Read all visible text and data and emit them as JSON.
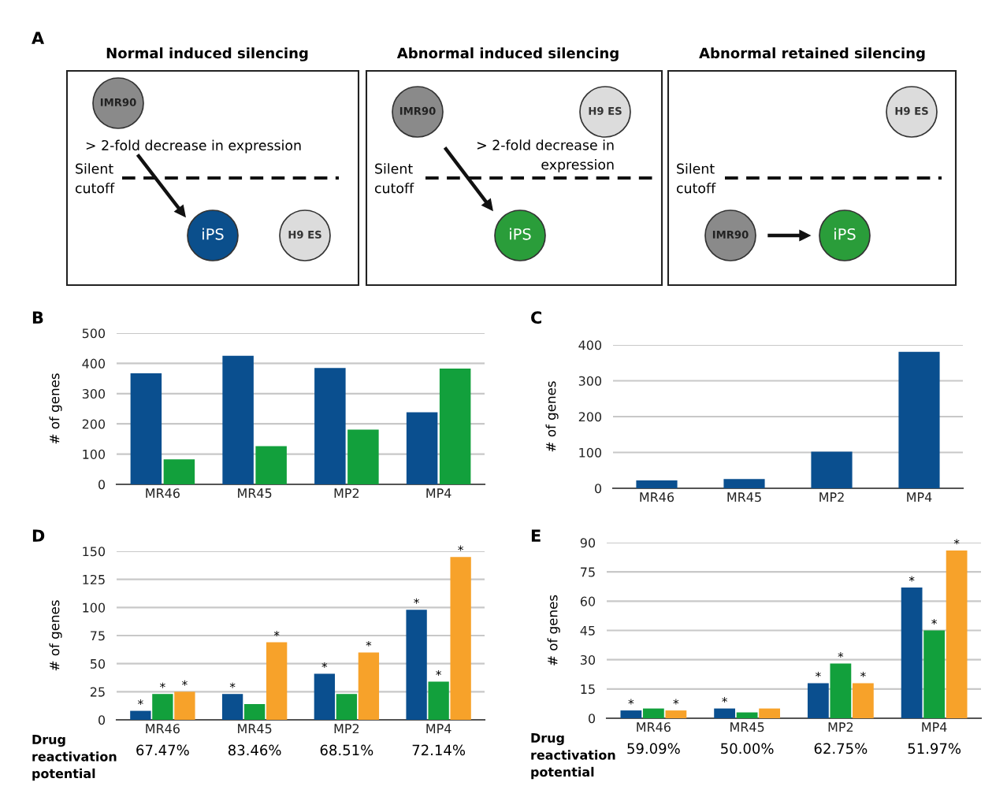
{
  "chart_data": [
    {
      "type": "other",
      "title": "A",
      "annotations": [
        "Normal induced silencing",
        "Abnormal induced silencing",
        "Abnormal retained silencing",
        "IMR90",
        "> 2-fold decrease in expression",
        "Silent\ncutoff",
        "iPS",
        "H9 ES",
        "IMR90",
        "H9 ES",
        "> 2-fold decrease in\nexpression",
        "Silent\ncutoff",
        "iPS",
        "H9 ES",
        "Silent\ncutoff",
        "IMR90",
        "iPS"
      ]
    },
    {
      "type": "bar",
      "title": "B",
      "ylabel": "# of genes",
      "categories": [
        "MR46",
        "MR45",
        "MP2",
        "MP4"
      ],
      "ylim": [
        0,
        500
      ],
      "yticks": [
        0,
        100,
        200,
        300,
        400,
        500
      ],
      "grid": "y",
      "series": [
        {
          "color": "#0a4f8f",
          "values": [
            367,
            425,
            385,
            238
          ]
        },
        {
          "color": "#12a03c",
          "values": [
            83,
            126,
            181,
            383
          ]
        }
      ]
    },
    {
      "type": "bar",
      "title": "C",
      "ylabel": "# of genes",
      "categories": [
        "MR46",
        "MR45",
        "MP2",
        "MP4"
      ],
      "ylim": [
        0,
        400
      ],
      "yticks": [
        0,
        100,
        200,
        300,
        400
      ],
      "grid": "y",
      "series": [
        {
          "color": "#0a4f8f",
          "values": [
            22,
            26,
            102,
            381
          ]
        }
      ]
    },
    {
      "type": "bar",
      "title": "D",
      "ylabel": "# of genes",
      "categories": [
        "MR46",
        "MR45",
        "MP2",
        "MP4"
      ],
      "ylim": [
        0,
        150
      ],
      "yticks": [
        0,
        25,
        50,
        75,
        100,
        125,
        150
      ],
      "grid": "y",
      "annotations": [
        "Drug\nreactivation\npotential",
        "67.47%",
        "83.46%",
        "68.51%",
        "72.14%"
      ],
      "series": [
        {
          "color": "#0a4f8f",
          "values": [
            8,
            23,
            41,
            98
          ],
          "value_labels": [
            "*",
            "*",
            "*",
            "*"
          ]
        },
        {
          "color": "#12a03c",
          "values": [
            23,
            14,
            23,
            34
          ],
          "value_labels": [
            "*",
            null,
            null,
            "*"
          ]
        },
        {
          "color": "#f7a22a",
          "values": [
            25,
            69,
            60,
            145
          ],
          "value_labels": [
            "*",
            "*",
            "*",
            "*"
          ]
        }
      ]
    },
    {
      "type": "bar",
      "title": "E",
      "ylabel": "# of genes",
      "categories": [
        "MR46",
        "MR45",
        "MP2",
        "MP4"
      ],
      "ylim": [
        0,
        90
      ],
      "yticks": [
        0,
        15,
        30,
        45,
        60,
        75,
        90
      ],
      "grid": "y",
      "annotations": [
        "Drug\nreactivation\npotential",
        "59.09%",
        "50.00%",
        "62.75%",
        "51.97%"
      ],
      "series": [
        {
          "color": "#0a4f8f",
          "values": [
            4,
            5,
            18,
            67
          ],
          "value_labels": [
            "*",
            "*",
            "*",
            "*"
          ]
        },
        {
          "color": "#12a03c",
          "values": [
            5,
            3,
            28,
            45
          ],
          "value_labels": [
            null,
            null,
            "*",
            "*"
          ]
        },
        {
          "color": "#f7a22a",
          "values": [
            4,
            5,
            18,
            86
          ],
          "value_labels": [
            "*",
            null,
            "*",
            "*"
          ]
        }
      ]
    }
  ]
}
